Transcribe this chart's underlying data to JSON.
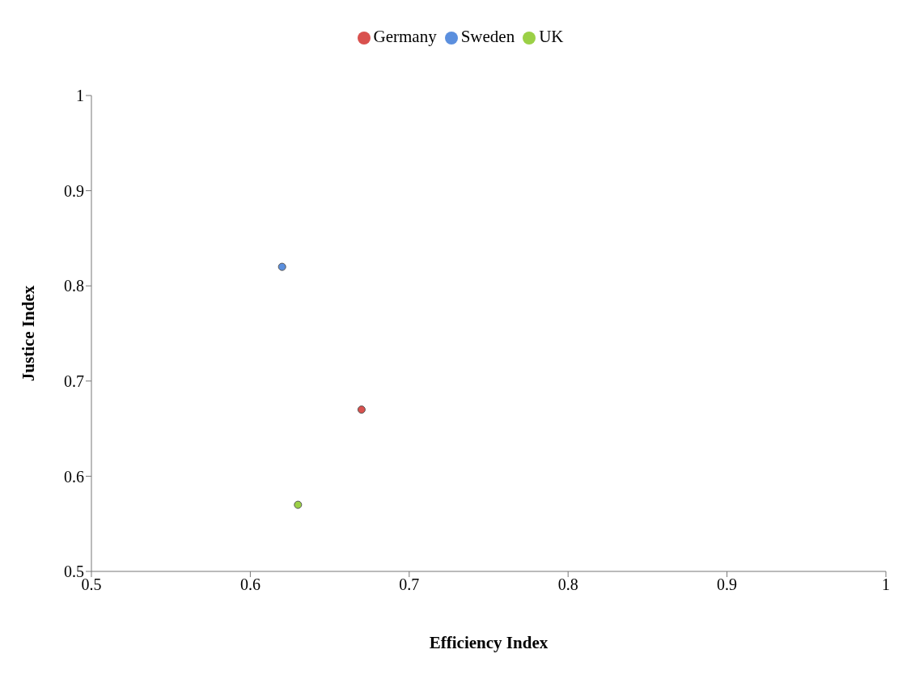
{
  "chart_data": {
    "type": "scatter",
    "xlabel": "Efficiency Index",
    "ylabel": "Justice Index",
    "xlim": [
      0.5,
      1
    ],
    "xticks": [
      0.5,
      0.6,
      0.7,
      0.8,
      0.9,
      1
    ],
    "ylim": [
      0.5,
      1
    ],
    "yticks": [
      0.5,
      0.6,
      0.7,
      0.8,
      0.9,
      1
    ],
    "grid": false,
    "legend": "top",
    "marker": "circle",
    "series": [
      {
        "name": "Sweden",
        "color": "#5b8fde",
        "x": [
          0.62
        ],
        "values": [
          0.82
        ]
      },
      {
        "name": "Germany",
        "color": "#d9514e",
        "x": [
          0.67
        ],
        "values": [
          0.67
        ]
      },
      {
        "name": "UK",
        "color": "#9bd046",
        "x": [
          0.63
        ],
        "values": [
          0.57
        ]
      }
    ]
  }
}
